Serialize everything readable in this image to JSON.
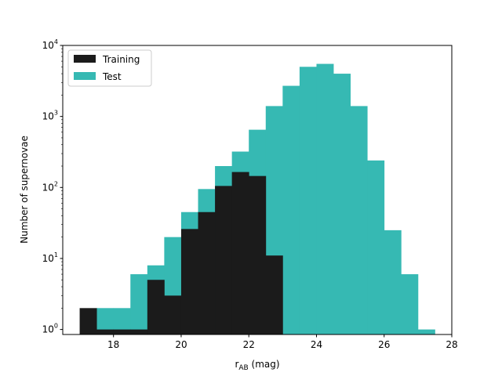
{
  "chart_data": {
    "type": "bar",
    "subtype": "histogram",
    "title": "",
    "xlabel": "r_AB (mag)",
    "xlabel_main": "r",
    "xlabel_sub": "AB",
    "xlabel_unit": " (mag)",
    "ylabel": "Number of supernovae",
    "xlim": [
      16.5,
      28
    ],
    "ylim": [
      0.85,
      10000
    ],
    "yscale": "log",
    "grid": false,
    "legend_position": "top-left",
    "x_ticks": [
      "18",
      "20",
      "22",
      "24",
      "26",
      "28"
    ],
    "y_tick_base": "10",
    "y_tick_exponents": [
      "0",
      "1",
      "2",
      "3",
      "4"
    ],
    "series": [
      {
        "name": "Test",
        "color": "#36b9b3",
        "bin_edges": [
          17.0,
          17.5,
          18.0,
          18.5,
          19.0,
          19.5,
          20.0,
          20.5,
          21.0,
          21.5,
          22.0,
          22.5,
          23.0,
          23.5,
          24.0,
          24.5,
          25.0,
          25.5,
          26.0,
          26.5,
          27.0,
          27.5
        ],
        "counts": [
          0,
          2,
          2,
          6,
          8,
          20,
          45,
          95,
          200,
          320,
          650,
          1400,
          2700,
          5000,
          5500,
          4000,
          1400,
          240,
          25,
          6,
          1
        ]
      },
      {
        "name": "Training",
        "color": "#1b1b1b",
        "bin_edges": [
          17.0,
          17.5,
          18.0,
          18.5,
          19.0,
          19.5,
          20.0,
          20.5,
          21.0,
          21.5,
          22.0,
          22.5,
          23.0
        ],
        "counts": [
          2,
          1,
          1,
          1,
          5,
          3,
          26,
          45,
          105,
          165,
          145,
          11
        ]
      }
    ]
  }
}
